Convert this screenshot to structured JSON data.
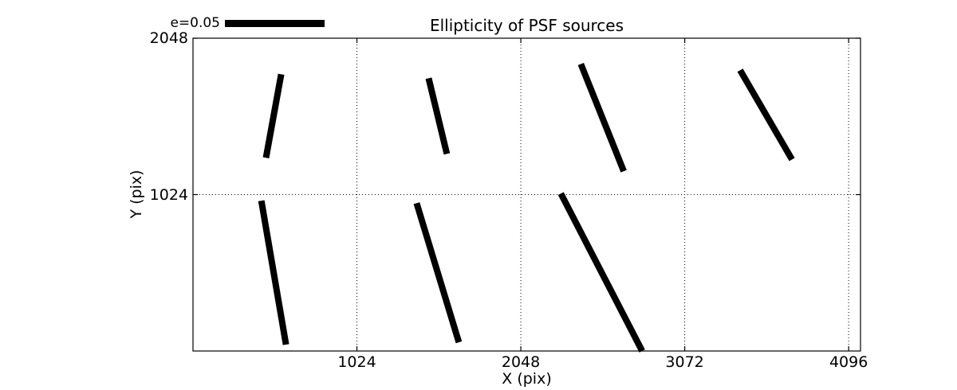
{
  "colors": {
    "background": "#ffffff",
    "axis": "#000000",
    "grid": "#000000",
    "stick": "#000000",
    "text": "#000000"
  },
  "chart_data": {
    "type": "whisker",
    "title": "Ellipticity of PSF sources",
    "xlabel": "X (pix)",
    "ylabel": "Y (pix)",
    "xlim": [
      0,
      4170
    ],
    "ylim": [
      0,
      2048
    ],
    "xticks": [
      1024,
      2048,
      3072,
      4096
    ],
    "yticks": [
      1024,
      2048
    ],
    "grid": {
      "x": [
        1024,
        2048,
        3072,
        4096
      ],
      "y": [
        1024
      ],
      "style": "dotted"
    },
    "legend": {
      "label": "e=0.05",
      "e_reference": 0.05,
      "position": "upper-left-above-axes"
    },
    "note": "Each black stick marks the ellipticity magnitude (length, scaled so the legend bar = e=0.05) and orientation of the PSF measured in one CCD cell; grid of cells is 4 across by 2 down, the lower-right cell has no stick.",
    "segments": [
      {
        "x1": 456,
        "y1": 1265,
        "x2": 551,
        "y2": 1812,
        "center_x": 512,
        "center_y": 1536,
        "e": 0.043
      },
      {
        "x1": 1472,
        "y1": 1786,
        "x2": 1586,
        "y2": 1291,
        "center_x": 1536,
        "center_y": 1536,
        "e": 0.039
      },
      {
        "x1": 2423,
        "y1": 1879,
        "x2": 2691,
        "y2": 1177,
        "center_x": 2560,
        "center_y": 1536,
        "e": 0.058
      },
      {
        "x1": 3418,
        "y1": 1838,
        "x2": 3742,
        "y2": 1254,
        "center_x": 3584,
        "center_y": 1536,
        "e": 0.052
      },
      {
        "x1": 427,
        "y1": 984,
        "x2": 581,
        "y2": 42,
        "center_x": 512,
        "center_y": 512,
        "e": 0.073
      },
      {
        "x1": 1397,
        "y1": 968,
        "x2": 1661,
        "y2": 57,
        "center_x": 1536,
        "center_y": 512,
        "e": 0.073
      },
      {
        "x1": 2298,
        "y1": 1031,
        "x2": 2806,
        "y2": 0,
        "center_x": 2560,
        "center_y": 512,
        "e": 0.089
      }
    ]
  }
}
